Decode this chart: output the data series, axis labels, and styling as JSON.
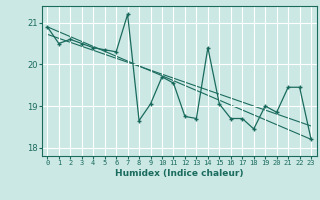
{
  "title": "",
  "xlabel": "Humidex (Indice chaleur)",
  "ylabel": "",
  "background_color": "#cce8e4",
  "grid_color": "#ffffff",
  "line_color": "#1a6b5e",
  "xlim": [
    -0.5,
    23.5
  ],
  "ylim": [
    17.8,
    21.4
  ],
  "yticks": [
    18,
    19,
    20,
    21
  ],
  "xticks": [
    0,
    1,
    2,
    3,
    4,
    5,
    6,
    7,
    8,
    9,
    10,
    11,
    12,
    13,
    14,
    15,
    16,
    17,
    18,
    19,
    20,
    21,
    22,
    23
  ],
  "series1_x": [
    0,
    1,
    2,
    3,
    4,
    5,
    6,
    7,
    8,
    9,
    10,
    11,
    12,
    13,
    14,
    15,
    16,
    17,
    18,
    19,
    20,
    21,
    22,
    23
  ],
  "series1_y": [
    20.9,
    20.5,
    20.6,
    20.5,
    20.4,
    20.35,
    20.3,
    21.2,
    18.65,
    19.05,
    19.7,
    19.55,
    18.75,
    18.7,
    20.4,
    19.05,
    18.7,
    18.7,
    18.45,
    19.0,
    18.85,
    19.45,
    19.45,
    18.2
  ],
  "trend_x": [
    0,
    23
  ],
  "trend_y": [
    20.9,
    18.2
  ],
  "trend2_x": [
    0,
    23
  ],
  "trend2_y": [
    20.72,
    18.52
  ]
}
